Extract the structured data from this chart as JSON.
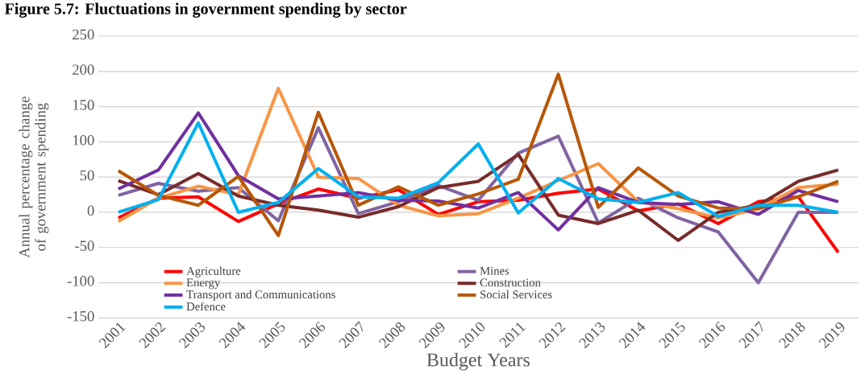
{
  "chart_data": {
    "type": "line",
    "title": "Figure 5.7: Fluctuations in government spending by sector",
    "xlabel": "Budget Years",
    "ylabel": "Annual percentage change of government spending",
    "categories": [
      "2001",
      "2002",
      "2003",
      "2004",
      "2005",
      "2006",
      "2007",
      "2008",
      "2009",
      "2010",
      "2011",
      "2012",
      "2013",
      "2014",
      "2015",
      "2016",
      "2017",
      "2018",
      "2019"
    ],
    "series": [
      {
        "name": "Agriculture",
        "color": "#ff0000",
        "values": [
          -8,
          20,
          22,
          -13,
          12,
          33,
          20,
          32,
          -3,
          15,
          17,
          27,
          33,
          2,
          12,
          -16,
          15,
          22,
          -57
        ]
      },
      {
        "name": "Mines",
        "color": "#8064a2",
        "values": [
          24,
          41,
          30,
          35,
          -12,
          120,
          -2,
          15,
          38,
          17,
          84,
          108,
          -15,
          20,
          -8,
          -28,
          -100,
          0,
          0
        ]
      },
      {
        "name": "Energy",
        "color": "#f79646",
        "values": [
          -13,
          20,
          37,
          25,
          176,
          50,
          48,
          10,
          -5,
          -2,
          20,
          45,
          69,
          15,
          5,
          -8,
          5,
          35,
          40
        ]
      },
      {
        "name": "Construction",
        "color": "#772c2a",
        "values": [
          45,
          25,
          55,
          23,
          10,
          3,
          -7,
          8,
          35,
          44,
          82,
          -4,
          -16,
          3,
          -40,
          0,
          10,
          44,
          60
        ]
      },
      {
        "name": "Transport and Communications",
        "color": "#7030a0",
        "values": [
          33,
          60,
          141,
          52,
          19,
          23,
          28,
          17,
          16,
          6,
          28,
          -25,
          35,
          14,
          11,
          15,
          -3,
          31,
          15
        ]
      },
      {
        "name": "Social Services",
        "color": "#b65708",
        "values": [
          59,
          24,
          10,
          51,
          -33,
          142,
          10,
          36,
          10,
          26,
          47,
          196,
          7,
          63,
          23,
          6,
          5,
          22,
          44
        ]
      },
      {
        "name": "Defence",
        "color": "#00b0f0",
        "values": [
          0,
          18,
          127,
          0,
          14,
          62,
          22,
          20,
          42,
          97,
          -1,
          48,
          19,
          14,
          28,
          -6,
          10,
          10,
          0
        ]
      }
    ],
    "ylim": [
      -150,
      250
    ],
    "yticks": [
      -150,
      -100,
      -50,
      0,
      50,
      100,
      150,
      200,
      250
    ],
    "grid": "y",
    "legend": "bottom",
    "marker": "none",
    "line_style": "solid"
  }
}
